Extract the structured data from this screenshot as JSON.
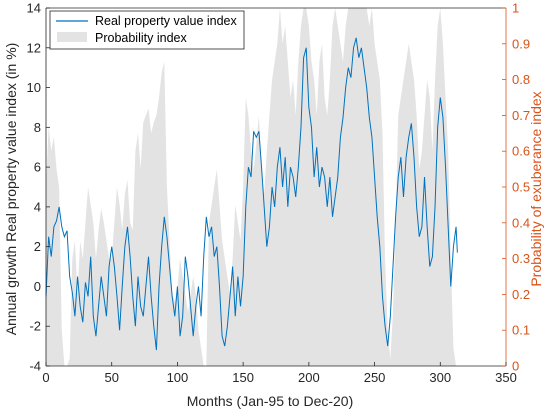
{
  "chart_data": {
    "type": "line",
    "xlabel": "Months (Jan-95 to Dec-20)",
    "ylabel_left": "Annual growth Real property value index (in %)",
    "ylabel_right": "Probability of exuberance index",
    "xlim": [
      0,
      350
    ],
    "ylim_left": [
      -4,
      14
    ],
    "ylim_right": [
      0,
      1
    ],
    "x_ticks": [
      "0",
      "50",
      "100",
      "150",
      "200",
      "250",
      "300",
      "350"
    ],
    "y_left_ticks": [
      "-4",
      "-2",
      "0",
      "2",
      "4",
      "6",
      "8",
      "10",
      "12",
      "14"
    ],
    "y_right_ticks": [
      "0",
      "0.1",
      "0.2",
      "0.3",
      "0.4",
      "0.5",
      "0.6",
      "0.7",
      "0.8",
      "0.9",
      "1"
    ],
    "grid": false,
    "legend_position": "top-left",
    "colors": {
      "line": "#0072bd",
      "area": "#e3e3e3",
      "right_axis": "#d95319",
      "axis": "#262626"
    },
    "series": [
      {
        "name": "Real property value index",
        "axis": "left",
        "kind": "line",
        "points": [
          [
            0,
            -0.5
          ],
          [
            2,
            2.5
          ],
          [
            4,
            1.5
          ],
          [
            6,
            3.0
          ],
          [
            8,
            3.3
          ],
          [
            10,
            4.0
          ],
          [
            12,
            3.0
          ],
          [
            14,
            2.5
          ],
          [
            16,
            2.8
          ],
          [
            18,
            0.5
          ],
          [
            20,
            -0.3
          ],
          [
            22,
            -1.5
          ],
          [
            24,
            0.5
          ],
          [
            26,
            -1.0
          ],
          [
            28,
            -1.8
          ],
          [
            30,
            0.2
          ],
          [
            32,
            -0.5
          ],
          [
            34,
            1.5
          ],
          [
            36,
            -1.5
          ],
          [
            38,
            -2.5
          ],
          [
            40,
            -1.0
          ],
          [
            42,
            0.5
          ],
          [
            44,
            -0.5
          ],
          [
            46,
            -1.5
          ],
          [
            48,
            1.0
          ],
          [
            50,
            2.0
          ],
          [
            52,
            1.0
          ],
          [
            54,
            -0.5
          ],
          [
            56,
            -2.2
          ],
          [
            58,
            0.0
          ],
          [
            60,
            2.0
          ],
          [
            62,
            3.0
          ],
          [
            64,
            1.5
          ],
          [
            66,
            -0.5
          ],
          [
            68,
            -2.0
          ],
          [
            70,
            0.5
          ],
          [
            72,
            -1.0
          ],
          [
            74,
            -1.5
          ],
          [
            76,
            0.0
          ],
          [
            78,
            1.5
          ],
          [
            80,
            -0.5
          ],
          [
            82,
            -2.0
          ],
          [
            84,
            -3.2
          ],
          [
            86,
            0.0
          ],
          [
            88,
            2.0
          ],
          [
            90,
            3.5
          ],
          [
            92,
            2.5
          ],
          [
            94,
            1.0
          ],
          [
            96,
            -0.5
          ],
          [
            98,
            -1.5
          ],
          [
            100,
            0.0
          ],
          [
            102,
            -2.5
          ],
          [
            104,
            -1.5
          ],
          [
            106,
            1.5
          ],
          [
            108,
            0.5
          ],
          [
            110,
            -1.0
          ],
          [
            112,
            -2.5
          ],
          [
            114,
            -1.0
          ],
          [
            116,
            0.0
          ],
          [
            118,
            -1.5
          ],
          [
            120,
            1.5
          ],
          [
            122,
            3.5
          ],
          [
            124,
            2.5
          ],
          [
            126,
            3.0
          ],
          [
            128,
            1.5
          ],
          [
            130,
            2.0
          ],
          [
            132,
            0.0
          ],
          [
            134,
            -2.5
          ],
          [
            136,
            -3.0
          ],
          [
            138,
            -2.0
          ],
          [
            140,
            -0.5
          ],
          [
            142,
            1.0
          ],
          [
            144,
            -1.5
          ],
          [
            146,
            0.5
          ],
          [
            148,
            -1.0
          ],
          [
            150,
            0.5
          ],
          [
            152,
            4.0
          ],
          [
            154,
            6.0
          ],
          [
            156,
            5.5
          ],
          [
            158,
            7.8
          ],
          [
            160,
            7.5
          ],
          [
            162,
            7.8
          ],
          [
            164,
            6.0
          ],
          [
            166,
            4.0
          ],
          [
            168,
            2.0
          ],
          [
            170,
            3.0
          ],
          [
            172,
            5.0
          ],
          [
            174,
            4.0
          ],
          [
            176,
            6.0
          ],
          [
            178,
            7.0
          ],
          [
            180,
            5.0
          ],
          [
            182,
            6.5
          ],
          [
            184,
            4.0
          ],
          [
            186,
            6.0
          ],
          [
            188,
            5.5
          ],
          [
            190,
            4.5
          ],
          [
            192,
            6.0
          ],
          [
            194,
            8.0
          ],
          [
            196,
            11.5
          ],
          [
            198,
            12.0
          ],
          [
            200,
            9.0
          ],
          [
            202,
            8.0
          ],
          [
            204,
            5.5
          ],
          [
            206,
            7.0
          ],
          [
            208,
            5.0
          ],
          [
            210,
            6.0
          ],
          [
            212,
            5.5
          ],
          [
            214,
            4.0
          ],
          [
            216,
            5.5
          ],
          [
            218,
            3.5
          ],
          [
            220,
            4.5
          ],
          [
            222,
            5.5
          ],
          [
            224,
            7.5
          ],
          [
            226,
            8.5
          ],
          [
            228,
            10.0
          ],
          [
            230,
            11.0
          ],
          [
            232,
            10.5
          ],
          [
            234,
            12.0
          ],
          [
            236,
            12.5
          ],
          [
            238,
            11.5
          ],
          [
            240,
            12.0
          ],
          [
            242,
            11.0
          ],
          [
            244,
            10.0
          ],
          [
            246,
            8.5
          ],
          [
            248,
            7.5
          ],
          [
            250,
            5.5
          ],
          [
            252,
            3.5
          ],
          [
            254,
            2.0
          ],
          [
            256,
            -0.5
          ],
          [
            258,
            -2.0
          ],
          [
            260,
            -3.0
          ],
          [
            262,
            -1.5
          ],
          [
            264,
            1.0
          ],
          [
            266,
            3.5
          ],
          [
            268,
            5.5
          ],
          [
            270,
            6.5
          ],
          [
            272,
            4.5
          ],
          [
            274,
            6.5
          ],
          [
            276,
            7.5
          ],
          [
            278,
            8.2
          ],
          [
            280,
            6.5
          ],
          [
            282,
            4.0
          ],
          [
            284,
            2.5
          ],
          [
            286,
            3.0
          ],
          [
            288,
            5.5
          ],
          [
            290,
            3.0
          ],
          [
            292,
            1.0
          ],
          [
            294,
            1.5
          ],
          [
            296,
            4.0
          ],
          [
            298,
            8.0
          ],
          [
            300,
            9.5
          ],
          [
            302,
            8.5
          ],
          [
            304,
            6.0
          ],
          [
            306,
            3.0
          ],
          [
            308,
            0.0
          ],
          [
            310,
            2.0
          ],
          [
            312,
            3.0
          ],
          [
            313,
            1.7
          ]
        ]
      },
      {
        "name": "Probability index",
        "axis": "right",
        "kind": "area",
        "points": [
          [
            0,
            0.5
          ],
          [
            2,
            0.67
          ],
          [
            4,
            0.6
          ],
          [
            6,
            0.64
          ],
          [
            8,
            0.55
          ],
          [
            10,
            0.5
          ],
          [
            12,
            0.1
          ],
          [
            14,
            0.0
          ],
          [
            16,
            0.0
          ],
          [
            18,
            0.02
          ],
          [
            20,
            0.3
          ],
          [
            22,
            0.35
          ],
          [
            24,
            0.2
          ],
          [
            26,
            0.35
          ],
          [
            28,
            0.3
          ],
          [
            30,
            0.4
          ],
          [
            32,
            0.5
          ],
          [
            34,
            0.45
          ],
          [
            36,
            0.4
          ],
          [
            38,
            0.3
          ],
          [
            40,
            0.38
          ],
          [
            42,
            0.44
          ],
          [
            44,
            0.4
          ],
          [
            46,
            0.35
          ],
          [
            48,
            0.3
          ],
          [
            50,
            0.3
          ],
          [
            52,
            0.4
          ],
          [
            54,
            0.5
          ],
          [
            56,
            0.45
          ],
          [
            58,
            0.38
          ],
          [
            60,
            0.48
          ],
          [
            62,
            0.52
          ],
          [
            64,
            0.4
          ],
          [
            66,
            0.38
          ],
          [
            68,
            0.6
          ],
          [
            70,
            0.65
          ],
          [
            72,
            0.55
          ],
          [
            74,
            0.68
          ],
          [
            76,
            0.7
          ],
          [
            78,
            0.72
          ],
          [
            80,
            0.65
          ],
          [
            82,
            0.68
          ],
          [
            84,
            0.7
          ],
          [
            86,
            0.75
          ],
          [
            88,
            0.82
          ],
          [
            90,
            0.85
          ],
          [
            92,
            0.5
          ],
          [
            94,
            0.35
          ],
          [
            96,
            0.2
          ],
          [
            98,
            0.18
          ],
          [
            100,
            0.22
          ],
          [
            102,
            0.3
          ],
          [
            104,
            0.25
          ],
          [
            106,
            0.2
          ],
          [
            108,
            0.15
          ],
          [
            110,
            0.2
          ],
          [
            112,
            0.25
          ],
          [
            114,
            0.2
          ],
          [
            116,
            0.1
          ],
          [
            118,
            0.05
          ],
          [
            120,
            0.0
          ],
          [
            122,
            0.0
          ],
          [
            124,
            0.4
          ],
          [
            126,
            0.45
          ],
          [
            128,
            0.5
          ],
          [
            130,
            0.55
          ],
          [
            132,
            0.45
          ],
          [
            134,
            0.35
          ],
          [
            136,
            0.3
          ],
          [
            138,
            0.25
          ],
          [
            140,
            0.2
          ],
          [
            142,
            0.3
          ],
          [
            144,
            0.45
          ],
          [
            146,
            0.4
          ],
          [
            148,
            0.35
          ],
          [
            150,
            0.5
          ],
          [
            152,
            0.75
          ],
          [
            154,
            0.7
          ],
          [
            156,
            0.6
          ],
          [
            158,
            0.55
          ],
          [
            160,
            0.62
          ],
          [
            162,
            0.7
          ],
          [
            164,
            0.55
          ],
          [
            166,
            0.48
          ],
          [
            168,
            0.6
          ],
          [
            170,
            0.7
          ],
          [
            172,
            0.8
          ],
          [
            174,
            0.85
          ],
          [
            176,
            0.9
          ],
          [
            178,
            1.0
          ],
          [
            180,
            0.9
          ],
          [
            182,
            0.95
          ],
          [
            184,
            0.85
          ],
          [
            186,
            0.75
          ],
          [
            188,
            0.8
          ],
          [
            190,
            0.7
          ],
          [
            192,
            0.85
          ],
          [
            194,
            0.95
          ],
          [
            196,
            1.0
          ],
          [
            198,
            1.0
          ],
          [
            200,
            0.95
          ],
          [
            202,
            0.85
          ],
          [
            204,
            0.8
          ],
          [
            206,
            0.7
          ],
          [
            208,
            0.85
          ],
          [
            210,
            0.9
          ],
          [
            212,
            0.75
          ],
          [
            214,
            0.7
          ],
          [
            216,
            0.8
          ],
          [
            218,
            0.95
          ],
          [
            220,
            1.0
          ],
          [
            222,
            0.95
          ],
          [
            224,
            0.9
          ],
          [
            226,
            0.85
          ],
          [
            228,
            0.95
          ],
          [
            230,
            1.0
          ],
          [
            232,
            1.0
          ],
          [
            234,
            1.0
          ],
          [
            236,
            1.0
          ],
          [
            238,
            1.0
          ],
          [
            240,
            1.0
          ],
          [
            242,
            1.0
          ],
          [
            244,
            1.0
          ],
          [
            246,
            0.95
          ],
          [
            248,
            1.0
          ],
          [
            250,
            0.9
          ],
          [
            252,
            0.85
          ],
          [
            254,
            0.8
          ],
          [
            256,
            0.65
          ],
          [
            258,
            0.3
          ],
          [
            260,
            0.1
          ],
          [
            262,
            0.02
          ],
          [
            264,
            0.15
          ],
          [
            266,
            0.4
          ],
          [
            268,
            0.7
          ],
          [
            270,
            0.75
          ],
          [
            272,
            0.8
          ],
          [
            274,
            0.85
          ],
          [
            276,
            0.9
          ],
          [
            278,
            0.85
          ],
          [
            280,
            0.8
          ],
          [
            282,
            0.7
          ],
          [
            284,
            0.55
          ],
          [
            286,
            0.6
          ],
          [
            288,
            0.7
          ],
          [
            290,
            0.8
          ],
          [
            292,
            0.75
          ],
          [
            294,
            0.6
          ],
          [
            296,
            0.8
          ],
          [
            298,
            0.95
          ],
          [
            300,
            1.0
          ],
          [
            302,
            0.9
          ],
          [
            304,
            0.75
          ],
          [
            306,
            0.6
          ],
          [
            308,
            0.3
          ],
          [
            310,
            0.05
          ],
          [
            312,
            0.0
          ]
        ]
      }
    ]
  }
}
